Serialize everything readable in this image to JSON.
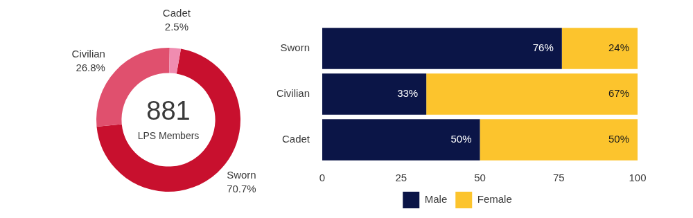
{
  "chart_data": [
    {
      "type": "doughnut",
      "categories": [
        "Sworn",
        "Civilian",
        "Cadet"
      ],
      "values": [
        70.7,
        26.8,
        2.5
      ],
      "value_labels": [
        "70.7%",
        "26.8%",
        "2.5%"
      ],
      "colors": [
        "#c8102e",
        "#e0506e",
        "#f08cb0"
      ],
      "data_labels": true,
      "annotations": [
        "881",
        "LPS Members"
      ]
    },
    {
      "type": "bar",
      "orientation": "horizontal",
      "stacked": true,
      "categories": [
        "Sworn",
        "Civilian",
        "Cadet"
      ],
      "series": [
        {
          "name": "Male",
          "color": "#0b1547",
          "values": [
            76,
            33,
            50
          ],
          "value_labels": [
            "76%",
            "33%",
            "50%"
          ]
        },
        {
          "name": "Female",
          "color": "#fcc42d",
          "values": [
            24,
            67,
            50
          ],
          "value_labels": [
            "24%",
            "67%",
            "50%"
          ]
        }
      ],
      "xlim": [
        0,
        100
      ],
      "xticks": [
        0,
        25,
        50,
        75,
        100
      ],
      "grid": false,
      "legend": "bottom",
      "data_labels": true
    }
  ]
}
